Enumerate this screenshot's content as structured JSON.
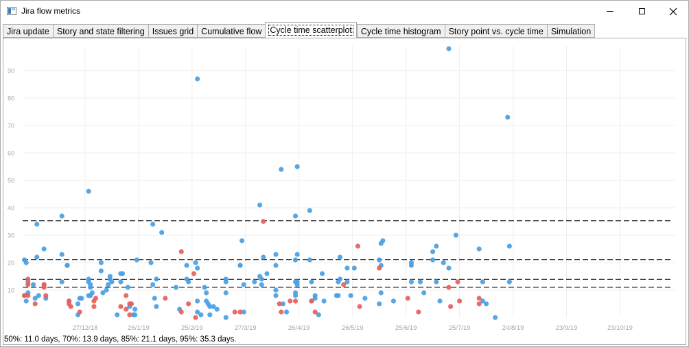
{
  "window": {
    "title": "Jira flow metrics",
    "icon": "chart-app-icon"
  },
  "tabs": [
    {
      "label": "Jira update",
      "active": false
    },
    {
      "label": "Story and state filtering",
      "active": false
    },
    {
      "label": "Issues grid",
      "active": false
    },
    {
      "label": "Cumulative flow",
      "active": false
    },
    {
      "label": "Cycle time scatterplot",
      "active": true
    },
    {
      "label": "Cycle time histogram",
      "active": false
    },
    {
      "label": "Story point vs. cycle time",
      "active": false
    },
    {
      "label": "Simulation",
      "active": false
    }
  ],
  "status_text": "50%: 11.0 days, 70%: 13.9 days, 85%: 21.1 days, 95%: 35.3 days.",
  "chart_data": {
    "type": "scatter",
    "title": "",
    "xlabel": "",
    "ylabel": "",
    "x_ticks": [
      "27/12/18",
      "26/1/19",
      "25/2/19",
      "27/3/19",
      "26/4/19",
      "26/5/19",
      "25/6/19",
      "25/7/19",
      "24/8/19",
      "23/9/19",
      "23/10/19"
    ],
    "x_range": [
      "2018-11-22",
      "2019-11-23"
    ],
    "y_ticks": [
      10,
      20,
      30,
      40,
      50,
      60,
      70,
      80,
      90
    ],
    "ylim": [
      0,
      98
    ],
    "grid": true,
    "percentile_lines": [
      11.0,
      13.9,
      21.1,
      35.3
    ],
    "colors": {
      "story": "#4a9fe3",
      "bug": "#e8605a",
      "percentile_line": "#333333",
      "grid": "#eeeeee",
      "tick_label": "#a8a8a8"
    },
    "series": [
      {
        "color": "blue",
        "points": [
          [
            "2018-11-23",
            21
          ],
          [
            "2018-11-24",
            20
          ],
          [
            "2018-11-23",
            8
          ],
          [
            "2018-11-24",
            6
          ],
          [
            "2018-11-25",
            9
          ],
          [
            "2018-11-25",
            13
          ],
          [
            "2018-11-28",
            12
          ],
          [
            "2018-11-29",
            7
          ],
          [
            "2018-11-30",
            34
          ],
          [
            "2018-11-30",
            22
          ],
          [
            "2018-12-01",
            8
          ],
          [
            "2018-12-04",
            12
          ],
          [
            "2018-12-04",
            25
          ],
          [
            "2018-12-05",
            7
          ],
          [
            "2018-12-14",
            37
          ],
          [
            "2018-12-14",
            23
          ],
          [
            "2018-12-14",
            13
          ],
          [
            "2018-12-17",
            19
          ],
          [
            "2018-12-17",
            19
          ],
          [
            "2018-12-18",
            6
          ],
          [
            "2018-12-23",
            5
          ],
          [
            "2018-12-23",
            1
          ],
          [
            "2018-12-24",
            7
          ],
          [
            "2018-12-25",
            7
          ],
          [
            "2018-12-29",
            46
          ],
          [
            "2018-12-29",
            14
          ],
          [
            "2018-12-29",
            13
          ],
          [
            "2018-12-30",
            12
          ],
          [
            "2018-12-30",
            11
          ],
          [
            "2018-12-29",
            8
          ],
          [
            "2018-12-30",
            8
          ],
          [
            "2018-12-31",
            9
          ],
          [
            "2019-01-05",
            20
          ],
          [
            "2019-01-05",
            17
          ],
          [
            "2019-01-06",
            9
          ],
          [
            "2019-01-08",
            10
          ],
          [
            "2019-01-09",
            12
          ],
          [
            "2019-01-10",
            14
          ],
          [
            "2019-01-10",
            15
          ],
          [
            "2019-01-11",
            13
          ],
          [
            "2019-01-14",
            1
          ],
          [
            "2019-01-16",
            16
          ],
          [
            "2019-01-16",
            13
          ],
          [
            "2019-01-17",
            16
          ],
          [
            "2019-01-20",
            11
          ],
          [
            "2019-01-21",
            4
          ],
          [
            "2019-01-23",
            1
          ],
          [
            "2019-01-24",
            3
          ],
          [
            "2019-01-25",
            21
          ],
          [
            "2019-01-24",
            1
          ],
          [
            "2019-02-02",
            20
          ],
          [
            "2019-02-03",
            34
          ],
          [
            "2019-02-03",
            12
          ],
          [
            "2019-02-04",
            7
          ],
          [
            "2019-02-05",
            4
          ],
          [
            "2019-02-05",
            14
          ],
          [
            "2019-02-08",
            31
          ],
          [
            "2019-02-16",
            11
          ],
          [
            "2019-02-18",
            3
          ],
          [
            "2019-02-22",
            14
          ],
          [
            "2019-02-22",
            19
          ],
          [
            "2019-02-23",
            13
          ],
          [
            "2019-02-27",
            20
          ],
          [
            "2019-02-28",
            18
          ],
          [
            "2019-02-28",
            87
          ],
          [
            "2019-02-28",
            6
          ],
          [
            "2019-02-28",
            2
          ],
          [
            "2019-03-02",
            1
          ],
          [
            "2019-03-04",
            11
          ],
          [
            "2019-03-05",
            9
          ],
          [
            "2019-03-05",
            6
          ],
          [
            "2019-03-06",
            5
          ],
          [
            "2019-03-07",
            1
          ],
          [
            "2019-03-07",
            4
          ],
          [
            "2019-03-09",
            4
          ],
          [
            "2019-03-11",
            3
          ],
          [
            "2019-03-16",
            14
          ],
          [
            "2019-03-16",
            13
          ],
          [
            "2019-03-16",
            9
          ],
          [
            "2019-03-16",
            0
          ],
          [
            "2019-03-24",
            19
          ],
          [
            "2019-03-24",
            19
          ],
          [
            "2019-03-25",
            28
          ],
          [
            "2019-03-26",
            2
          ],
          [
            "2019-03-26",
            12
          ],
          [
            "2019-04-01",
            13
          ],
          [
            "2019-04-04",
            41
          ],
          [
            "2019-04-05",
            12
          ],
          [
            "2019-04-06",
            22
          ],
          [
            "2019-04-05",
            14
          ],
          [
            "2019-04-04",
            15
          ],
          [
            "2019-04-08",
            16
          ],
          [
            "2019-04-13",
            19
          ],
          [
            "2019-04-13",
            23
          ],
          [
            "2019-04-13",
            10
          ],
          [
            "2019-04-13",
            8
          ],
          [
            "2019-04-16",
            54
          ],
          [
            "2019-04-25",
            55
          ],
          [
            "2019-04-24",
            37
          ],
          [
            "2019-04-24",
            21
          ],
          [
            "2019-04-25",
            23
          ],
          [
            "2019-04-24",
            13
          ],
          [
            "2019-04-25",
            12
          ],
          [
            "2019-04-25",
            13
          ],
          [
            "2019-04-24",
            9
          ],
          [
            "2019-04-24",
            8
          ],
          [
            "2019-04-17",
            5
          ],
          [
            "2019-04-19",
            2
          ],
          [
            "2019-05-02",
            39
          ],
          [
            "2019-05-02",
            21
          ],
          [
            "2019-05-03",
            13
          ],
          [
            "2019-05-03",
            6
          ],
          [
            "2019-05-05",
            7
          ],
          [
            "2019-05-05",
            8
          ],
          [
            "2019-05-07",
            1
          ],
          [
            "2019-05-09",
            16
          ],
          [
            "2019-05-10",
            6
          ],
          [
            "2019-05-17",
            8
          ],
          [
            "2019-05-18",
            13
          ],
          [
            "2019-05-19",
            14
          ],
          [
            "2019-05-19",
            22
          ],
          [
            "2019-05-18",
            8
          ],
          [
            "2019-05-23",
            18
          ],
          [
            "2019-05-23",
            13
          ],
          [
            "2019-05-25",
            8
          ],
          [
            "2019-05-27",
            18
          ],
          [
            "2019-06-02",
            7
          ],
          [
            "2019-06-11",
            19
          ],
          [
            "2019-06-10",
            21
          ],
          [
            "2019-06-11",
            27
          ],
          [
            "2019-06-12",
            28
          ],
          [
            "2019-06-11",
            9
          ],
          [
            "2019-06-10",
            5
          ],
          [
            "2019-06-18",
            6
          ],
          [
            "2019-06-28",
            20
          ],
          [
            "2019-06-28",
            19
          ],
          [
            "2019-06-28",
            13
          ],
          [
            "2019-07-03",
            13
          ],
          [
            "2019-07-05",
            9
          ],
          [
            "2019-07-10",
            24
          ],
          [
            "2019-07-12",
            26
          ],
          [
            "2019-07-12",
            13
          ],
          [
            "2019-07-10",
            21
          ],
          [
            "2019-07-14",
            6
          ],
          [
            "2019-07-16",
            20
          ],
          [
            "2019-07-19",
            18
          ],
          [
            "2019-07-23",
            30
          ],
          [
            "2019-08-05",
            25
          ],
          [
            "2019-08-07",
            13
          ],
          [
            "2019-08-07",
            6
          ],
          [
            "2019-08-09",
            5
          ],
          [
            "2019-08-14",
            0
          ],
          [
            "2019-08-21",
            73
          ],
          [
            "2019-08-22",
            26
          ],
          [
            "2019-08-22",
            13
          ],
          [
            "2019-07-19",
            98
          ]
        ]
      },
      {
        "color": "red",
        "points": [
          [
            "2018-11-23",
            8
          ],
          [
            "2018-11-25",
            14
          ],
          [
            "2018-11-25",
            12
          ],
          [
            "2018-11-25",
            8
          ],
          [
            "2018-11-29",
            5
          ],
          [
            "2018-12-04",
            12
          ],
          [
            "2018-12-04",
            11
          ],
          [
            "2018-12-05",
            8
          ],
          [
            "2018-12-18",
            6
          ],
          [
            "2018-12-18",
            5
          ],
          [
            "2018-12-19",
            4
          ],
          [
            "2018-12-24",
            2
          ],
          [
            "2019-01-01",
            6
          ],
          [
            "2019-01-01",
            4
          ],
          [
            "2019-01-02",
            7
          ],
          [
            "2019-01-16",
            4
          ],
          [
            "2019-01-19",
            8
          ],
          [
            "2019-01-19",
            3
          ],
          [
            "2019-01-21",
            5
          ],
          [
            "2019-01-22",
            5
          ],
          [
            "2019-01-21",
            1
          ],
          [
            "2019-02-10",
            7
          ],
          [
            "2019-02-19",
            24
          ],
          [
            "2019-02-19",
            2
          ],
          [
            "2019-02-23",
            5
          ],
          [
            "2019-02-26",
            16
          ],
          [
            "2019-02-27",
            0
          ],
          [
            "2019-03-21",
            2
          ],
          [
            "2019-03-24",
            2
          ],
          [
            "2019-04-06",
            35
          ],
          [
            "2019-04-15",
            5
          ],
          [
            "2019-04-16",
            2
          ],
          [
            "2019-04-21",
            6
          ],
          [
            "2019-04-24",
            6
          ],
          [
            "2019-05-03",
            6
          ],
          [
            "2019-05-05",
            2
          ],
          [
            "2019-05-21",
            12
          ],
          [
            "2019-05-29",
            26
          ],
          [
            "2019-05-30",
            4
          ],
          [
            "2019-06-10",
            18
          ],
          [
            "2019-06-26",
            7
          ],
          [
            "2019-07-02",
            2
          ],
          [
            "2019-07-19",
            11
          ],
          [
            "2019-07-20",
            4
          ],
          [
            "2019-07-24",
            13
          ],
          [
            "2019-07-25",
            6
          ],
          [
            "2019-08-05",
            7
          ],
          [
            "2019-08-05",
            5
          ]
        ]
      }
    ]
  }
}
